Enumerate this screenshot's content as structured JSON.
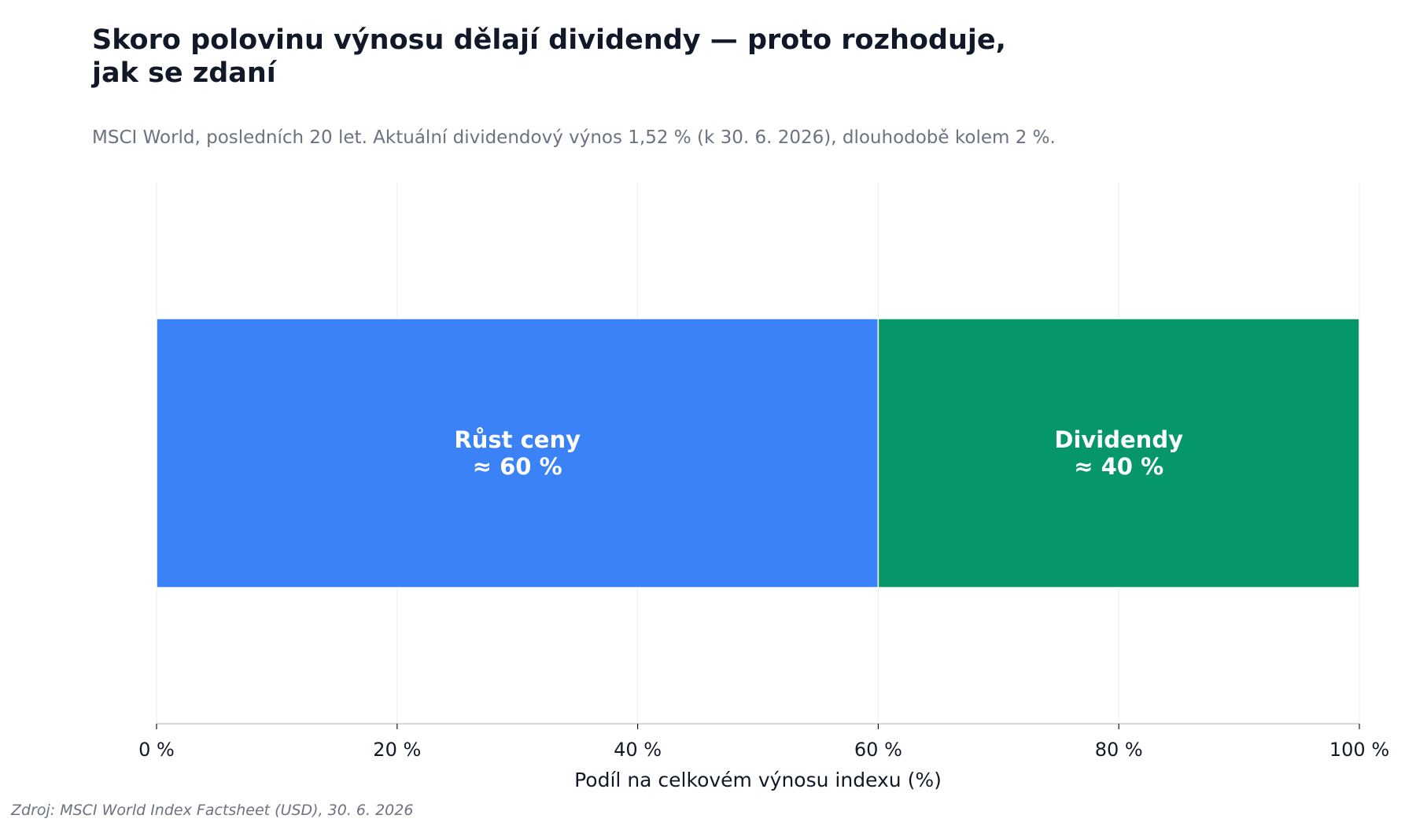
{
  "header": {
    "title": "Skoro polovinu výnosu dělají dividendy — proto rozhoduje,\njak se zdaní",
    "subtitle": "MSCI World, posledních 20 let. Aktuální dividendový výnos 1,52 % (k 30. 6. 2026), dlouhodobě kolem 2 %."
  },
  "footer": {
    "source": "Zdroj: MSCI World Index Factsheet (USD), 30. 6. 2026"
  },
  "chart_data": {
    "type": "bar",
    "orientation": "horizontal",
    "stacked": true,
    "title": "Skoro polovinu výnosu dělají dividendy — proto rozhoduje, jak se zdaní",
    "subtitle": "MSCI World, posledních 20 let. Aktuální dividendový výnos 1,52 % (k 30. 6. 2026), dlouhodobě kolem 2 %.",
    "xlabel": "Podíl na celkovém výnosu indexu (%)",
    "ylabel": "",
    "xlim": [
      0,
      100
    ],
    "x_ticks": [
      0,
      20,
      40,
      60,
      80,
      100
    ],
    "x_tick_labels": [
      "0 %",
      "20 %",
      "40 %",
      "60 %",
      "80 %",
      "100 %"
    ],
    "grid": "vertical",
    "legend": "none",
    "segments": [
      {
        "name": "Růst ceny",
        "value": 60,
        "label_lines": [
          "Růst ceny",
          "≈ 60 %"
        ],
        "color": "#3b82f6"
      },
      {
        "name": "Dividendy",
        "value": 40,
        "label_lines": [
          "Dividendy",
          "≈ 40 %"
        ],
        "color": "#059669"
      }
    ],
    "colors": {
      "grid": "#eeeeee",
      "axis": "#cccccc",
      "label": "#ffffff"
    }
  }
}
